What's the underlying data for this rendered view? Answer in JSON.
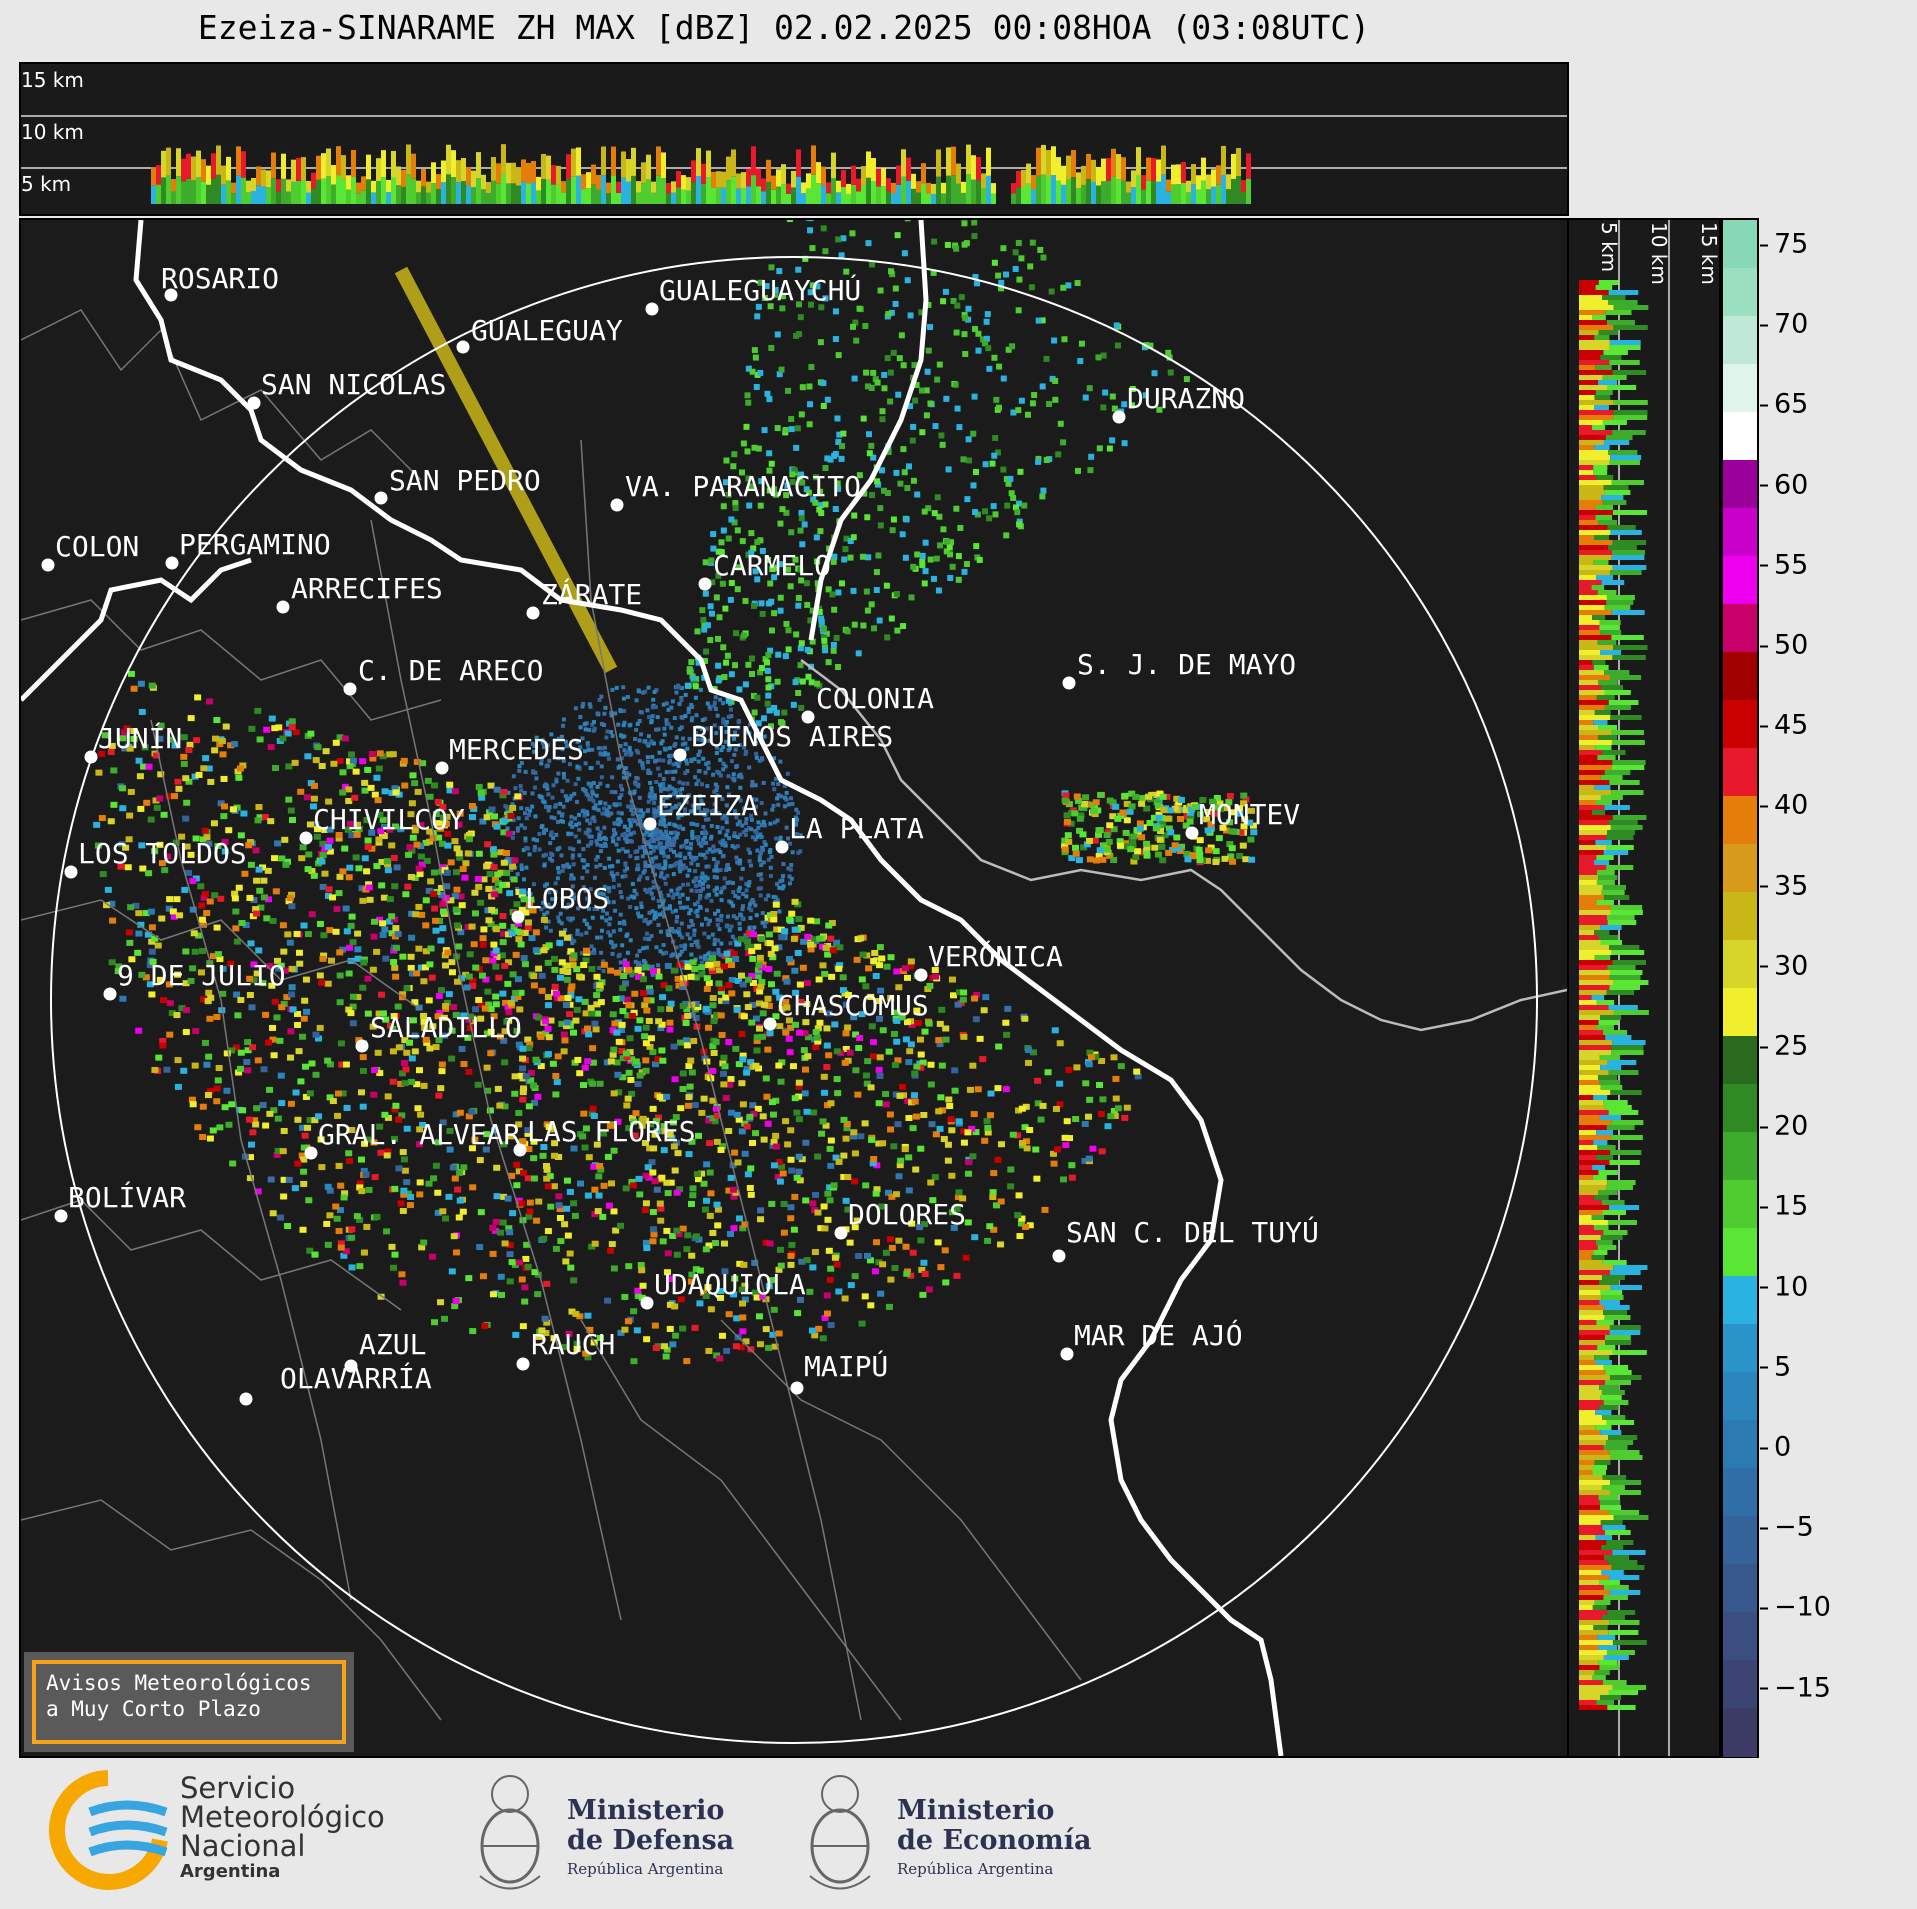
{
  "title": "Ezeiza-SINARAME ZH MAX [dBZ] 02.02.2025 00:08HOA (03:08UTC)",
  "top_levels": [
    "15 km",
    "10 km",
    "5 km"
  ],
  "right_levels": [
    "5 km",
    "10 km",
    "15 km"
  ],
  "colorbar": {
    "ticks": [
      "75",
      "70",
      "65",
      "60",
      "55",
      "50",
      "45",
      "40",
      "35",
      "30",
      "25",
      "20",
      "15",
      "10",
      "5",
      "0",
      "−5",
      "−10",
      "−15"
    ],
    "stops": [
      "#86d8b6",
      "#99dfc0",
      "#bfe9d6",
      "#e0f5ea",
      "#ffffff",
      "#9b009b",
      "#c900c9",
      "#ee00ee",
      "#c8006a",
      "#a00000",
      "#c80000",
      "#e8192b",
      "#e57d0b",
      "#d79a1a",
      "#c9b617",
      "#d8d52a",
      "#f1ee2b",
      "#2a6a1f",
      "#2f8a24",
      "#3dab2c",
      "#4ecc30",
      "#59e634",
      "#2ab3e0",
      "#2a93c8",
      "#2b86bd",
      "#2c7ab2",
      "#2f6ea6",
      "#33639a",
      "#37588d",
      "#3a4e80",
      "#3c4473",
      "#3c3b66"
    ]
  },
  "cities": [
    {
      "name": "ROSARIO"
    },
    {
      "name": "GUALEGUAYCHÚ"
    },
    {
      "name": "GUALEGUAY"
    },
    {
      "name": "SAN NICOLAS"
    },
    {
      "name": "DURAZNO"
    },
    {
      "name": "SAN PEDRO"
    },
    {
      "name": "VA. PARANACITO"
    },
    {
      "name": "COLON"
    },
    {
      "name": "PERGAMINO"
    },
    {
      "name": "CARMELO"
    },
    {
      "name": "ARRECIFES"
    },
    {
      "name": "ZÁRATE"
    },
    {
      "name": "S. J. DE MAYO"
    },
    {
      "name": "C. DE ARECO"
    },
    {
      "name": "COLONIA"
    },
    {
      "name": "JUNÍN"
    },
    {
      "name": "BUENOS AIRES"
    },
    {
      "name": "MERCEDES"
    },
    {
      "name": "EZEIZA"
    },
    {
      "name": "MONTEV"
    },
    {
      "name": "CHIVILCOY"
    },
    {
      "name": "LA PLATA"
    },
    {
      "name": "LOS TOLDOS"
    },
    {
      "name": "LOBOS"
    },
    {
      "name": "VERÓNICA"
    },
    {
      "name": "9 DE JULIO"
    },
    {
      "name": "CHASCOMUS"
    },
    {
      "name": "SALADILLO"
    },
    {
      "name": "GRAL. ALVEAR"
    },
    {
      "name": "LAS FLORES"
    },
    {
      "name": "BOLÍVAR"
    },
    {
      "name": "DOLORES"
    },
    {
      "name": "SAN C. DEL TUYÚ"
    },
    {
      "name": "UDAQUIOLA"
    },
    {
      "name": "AZUL"
    },
    {
      "name": "RAUCH"
    },
    {
      "name": "MAR DE AJÓ"
    },
    {
      "name": "MAIPÚ"
    },
    {
      "name": "OLAVARRÍA"
    }
  ],
  "warning": {
    "line1": "Avisos Meteorológicos",
    "line2": "a Muy Corto Plazo"
  },
  "footer": {
    "smn": [
      "Servicio",
      "Meteorológico",
      "Nacional",
      "Argentina"
    ],
    "defensa": [
      "Ministerio",
      "de Defensa",
      "República Argentina"
    ],
    "economia": [
      "Ministerio",
      "de Economía",
      "República Argentina"
    ]
  }
}
